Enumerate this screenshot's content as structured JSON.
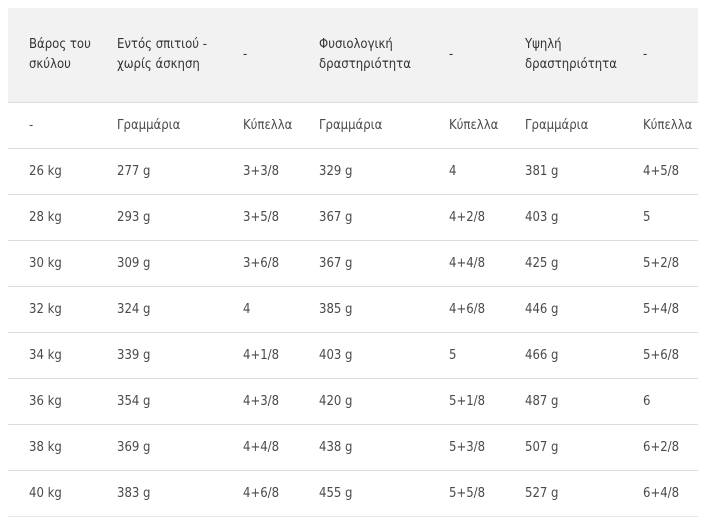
{
  "table": {
    "headers": [
      "Βάρος του σκύλου",
      "Εντός σπιτιού - χωρίς άσκηση",
      "-",
      "Φυσιολογική δραστηριότητα",
      "-",
      "Υψηλή δραστηριότητα",
      "-"
    ],
    "rows": [
      [
        "-",
        "Γραμμάρια",
        "Κύπελλα",
        "Γραμμάρια",
        "Κύπελλα",
        "Γραμμάρια",
        "Κύπελλα"
      ],
      [
        "26 kg",
        "277 g",
        "3+3/8",
        "329 g",
        "4",
        "381 g",
        "4+5/8"
      ],
      [
        "28 kg",
        "293 g",
        "3+5/8",
        "367 g",
        "4+2/8",
        "403 g",
        "5"
      ],
      [
        "30 kg",
        "309 g",
        "3+6/8",
        "367 g",
        "4+4/8",
        "425 g",
        "5+2/8"
      ],
      [
        "32 kg",
        "324 g",
        "4",
        "385 g",
        "4+6/8",
        "446 g",
        "5+4/8"
      ],
      [
        "34 kg",
        "339 g",
        "4+1/8",
        "403 g",
        "5",
        "466 g",
        "5+6/8"
      ],
      [
        "36 kg",
        "354 g",
        "4+3/8",
        "420 g",
        "5+1/8",
        "487 g",
        "6"
      ],
      [
        "38 kg",
        "369 g",
        "4+4/8",
        "438 g",
        "5+3/8",
        "507 g",
        "6+2/8"
      ],
      [
        "40 kg",
        "383 g",
        "4+6/8",
        "455 g",
        "5+5/8",
        "527 g",
        "6+4/8"
      ]
    ]
  }
}
